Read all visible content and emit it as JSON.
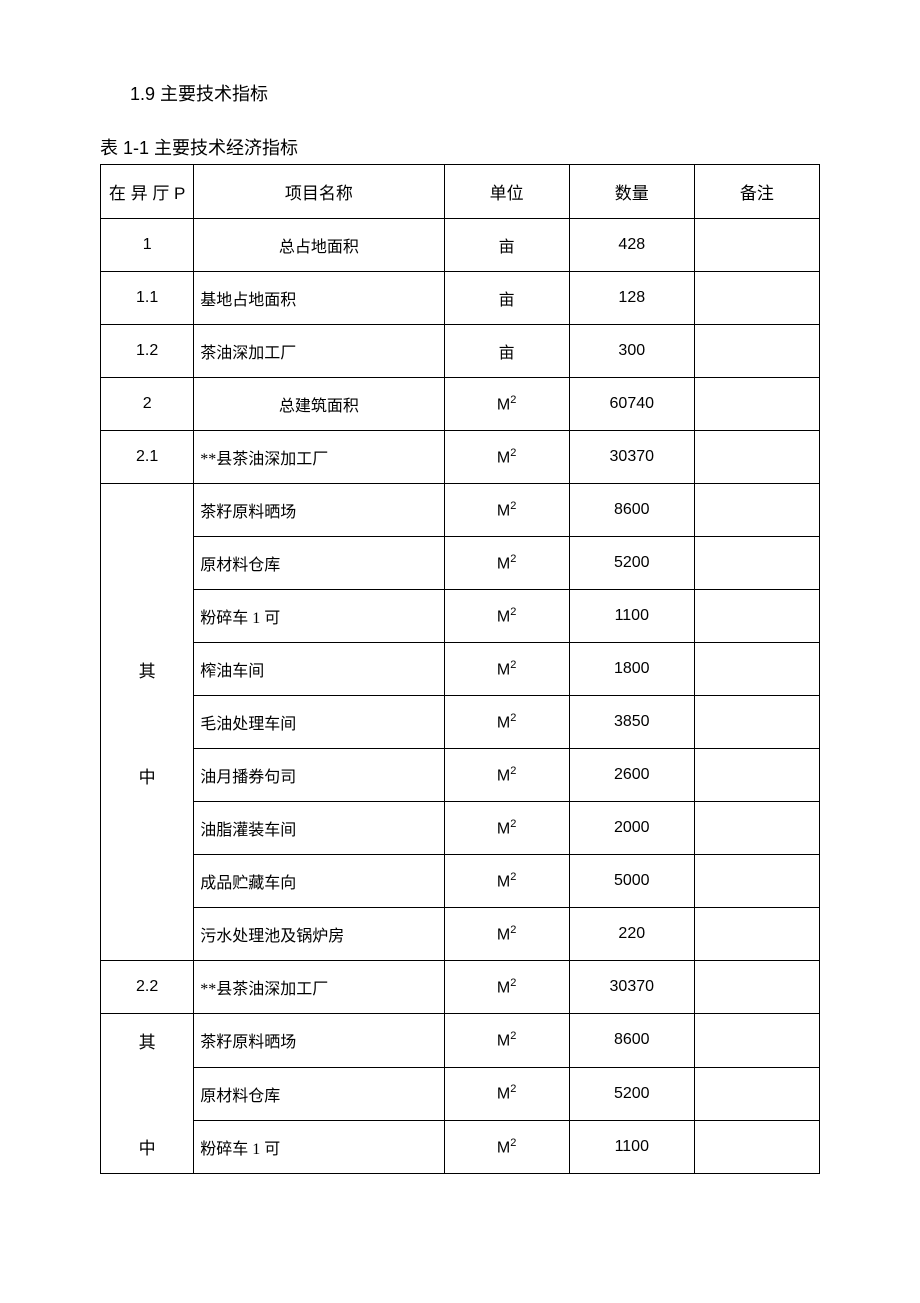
{
  "section": {
    "number": "1.9",
    "title": "主要技术指标"
  },
  "table": {
    "caption_num": "表 1-1",
    "caption_text": "主要技术经济指标",
    "columns": {
      "seq": "在 㫒  厅 P",
      "name": "项目名称",
      "unit": "单位",
      "qty": "数量",
      "remark": "备注"
    },
    "rows": [
      {
        "seq": "1",
        "name": "总占地面积",
        "unit": "亩",
        "qty": "428",
        "center": true
      },
      {
        "seq": "1.1",
        "name": "基地占地面积",
        "unit": "亩",
        "qty": "128"
      },
      {
        "seq": "1.2",
        "name": "茶油深加工厂",
        "unit": "亩",
        "qty": "300"
      },
      {
        "seq": "2",
        "name": "总建筑面积",
        "unit": "M2",
        "qty": "60740",
        "center": true,
        "sup": true
      },
      {
        "seq": "2.1",
        "name": "**县茶油深加工厂",
        "unit": "M2",
        "qty": "30370",
        "sup": true
      }
    ],
    "group1": {
      "label_top": "其",
      "label_bottom": "中",
      "rows": [
        {
          "name": "茶籽原料晒场",
          "unit": "M2",
          "qty": "8600",
          "sup": true
        },
        {
          "name": "原材料仓库",
          "unit": "M2",
          "qty": "5200",
          "sup": true
        },
        {
          "name": "粉碎车 1 可",
          "unit": "M2",
          "qty": "1100",
          "sup": true
        },
        {
          "name": "榨油车间",
          "unit": "M2",
          "qty": "1800",
          "sup": true
        },
        {
          "name": "毛油处理车间",
          "unit": "M2",
          "qty": "3850",
          "sup": true
        },
        {
          "name": "油月播券句司",
          "unit": "M2",
          "qty": "2600",
          "sup": true
        },
        {
          "name": "油脂灌装车间",
          "unit": "M2",
          "qty": "2000",
          "sup": true
        },
        {
          "name": "成品贮藏车向",
          "unit": "M2",
          "qty": "5000",
          "sup": true
        },
        {
          "name": "污水处理池及锅炉房",
          "unit": "M2",
          "qty": "220",
          "sup": true
        }
      ]
    },
    "row_22": {
      "seq": "2.2",
      "name": "**县茶油深加工厂",
      "unit": "M2",
      "qty": "30370",
      "sup": true
    },
    "group2": {
      "label_top": "其",
      "label_bottom": "中",
      "rows": [
        {
          "name": "茶籽原料晒场",
          "unit": "M2",
          "qty": "8600",
          "sup": true
        },
        {
          "name": "原材料仓库",
          "unit": "M2",
          "qty": "5200",
          "sup": true
        },
        {
          "name": "粉碎车 1 可",
          "unit": "M2",
          "qty": "1100",
          "sup": true
        }
      ]
    }
  },
  "styling": {
    "background_color": "#ffffff",
    "border_color": "#000000",
    "font_family": "SimSun",
    "base_fontsize": 16,
    "title_fontsize": 18
  }
}
